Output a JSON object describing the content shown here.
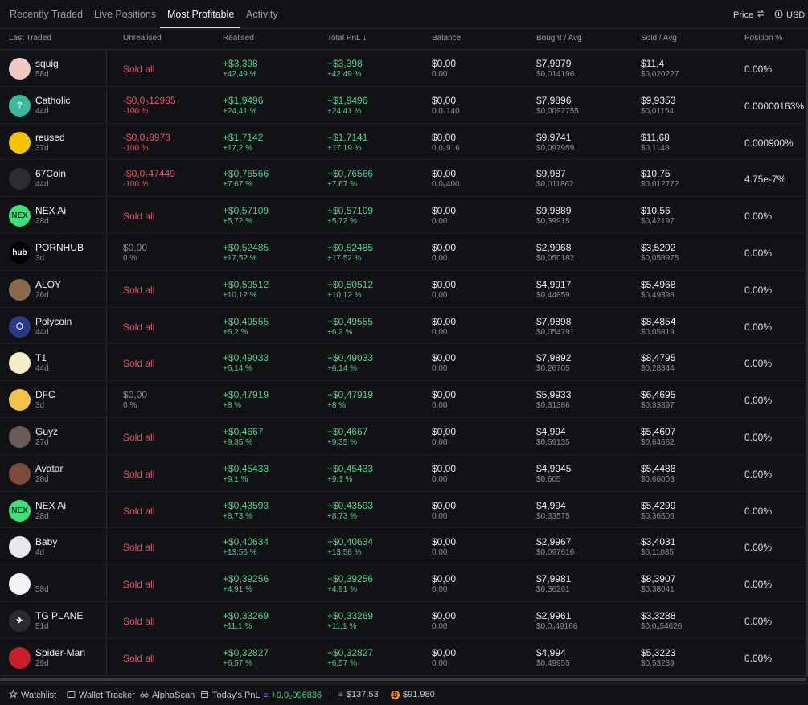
{
  "tabs": [
    {
      "label": "Recently Traded"
    },
    {
      "label": "Live Positions"
    },
    {
      "label": "Most Profitable"
    },
    {
      "label": "Activity"
    }
  ],
  "header_right": {
    "price_label": "Price",
    "currency_label": "USD"
  },
  "columns": [
    "Last Traded",
    "Unrealised",
    "Realised",
    "Total PnL",
    "Balance",
    "Bought / Avg",
    "Sold / Avg",
    "Position %"
  ],
  "sort_indicator": "↓",
  "rows": [
    {
      "name": "squig",
      "age": "58d",
      "avatar": "#f0c7c3",
      "avatar_text": "",
      "unreal_1": "Sold all",
      "unreal_2": "",
      "unreal_style": "red",
      "real_1": "+$3,398",
      "real_2": "+42,49 %",
      "total_1": "+$3,398",
      "total_2": "+42,49 %",
      "bal_1": "$0,00",
      "bal_2": "0,00",
      "bought_1": "$7,9979",
      "bought_2": "$0,014196",
      "sold_1": "$11,4",
      "sold_2": "$0,020227",
      "position": "0.00%"
    },
    {
      "name": "Catholic",
      "age": "44d",
      "avatar": "#3ab8a0",
      "avatar_text": "?",
      "unreal_1": "-$0,0₆12985",
      "unreal_2": "-100 %",
      "unreal_style": "red2",
      "real_1": "+$1,9496",
      "real_2": "+24,41 %",
      "total_1": "+$1,9496",
      "total_2": "+24,41 %",
      "bal_1": "$0,00",
      "bal_2": "0,0₄140",
      "bought_1": "$7,9896",
      "bought_2": "$0,0092755",
      "sold_1": "$9,9353",
      "sold_2": "$0,01154",
      "position": "0.00000163%"
    },
    {
      "name": "reused",
      "age": "37d",
      "avatar": "#f5c400",
      "avatar_text": "",
      "unreal_1": "-$0,0₄8973",
      "unreal_2": "-100 %",
      "unreal_style": "red2",
      "real_1": "+$1,7142",
      "real_2": "+17,2 %",
      "total_1": "+$1,7141",
      "total_2": "+17,19 %",
      "bal_1": "$0,00",
      "bal_2": "0,0₃916",
      "bought_1": "$9,9741",
      "bought_2": "$0,097959",
      "sold_1": "$11,68",
      "sold_2": "$0,1148",
      "position": "0.000900%"
    },
    {
      "name": "67Coin",
      "age": "44d",
      "avatar": "#2b2c30",
      "avatar_text": "",
      "unreal_1": "-$0,0₇47449",
      "unreal_2": "-100 %",
      "unreal_style": "red2",
      "real_1": "+$0,76566",
      "real_2": "+7,67 %",
      "total_1": "+$0,76566",
      "total_2": "+7,67 %",
      "bal_1": "$0,00",
      "bal_2": "0,0₅400",
      "bought_1": "$9,987",
      "bought_2": "$0,011862",
      "sold_1": "$10,75",
      "sold_2": "$0,012772",
      "position": "4.75e-7%"
    },
    {
      "name": "NEX Ai",
      "age": "28d",
      "avatar": "#3ee07a",
      "avatar_text": "NEX",
      "unreal_1": "Sold all",
      "unreal_2": "",
      "unreal_style": "red",
      "real_1": "+$0,57109",
      "real_2": "+5,72 %",
      "total_1": "+$0,57109",
      "total_2": "+5,72 %",
      "bal_1": "$0,00",
      "bal_2": "0,00",
      "bought_1": "$9,9889",
      "bought_2": "$0,39915",
      "sold_1": "$10,56",
      "sold_2": "$0,42197",
      "position": "0.00%"
    },
    {
      "name": "PORNHUB",
      "age": "3d",
      "avatar": "#000000",
      "avatar_text": "hub",
      "unreal_1": "$0,00",
      "unreal_2": "0 %",
      "unreal_style": "grey",
      "real_1": "+$0,52485",
      "real_2": "+17,52 %",
      "total_1": "+$0,52485",
      "total_2": "+17,52 %",
      "bal_1": "$0,00",
      "bal_2": "0,00",
      "bought_1": "$2,9968",
      "bought_2": "$0,050182",
      "sold_1": "$3,5202",
      "sold_2": "$0,058975",
      "position": "0.00%"
    },
    {
      "name": "ALOY",
      "age": "26d",
      "avatar": "#8a6a4a",
      "avatar_text": "",
      "unreal_1": "Sold all",
      "unreal_2": "",
      "unreal_style": "red",
      "real_1": "+$0,50512",
      "real_2": "+10,12 %",
      "total_1": "+$0,50512",
      "total_2": "+10,12 %",
      "bal_1": "$0,00",
      "bal_2": "0,00",
      "bought_1": "$4,9917",
      "bought_2": "$0,44859",
      "sold_1": "$5,4968",
      "sold_2": "$0,49398",
      "position": "0.00%"
    },
    {
      "name": "Polycoin",
      "age": "44d",
      "avatar": "#2a3a8a",
      "avatar_text": "⬡",
      "unreal_1": "Sold all",
      "unreal_2": "",
      "unreal_style": "red",
      "real_1": "+$0,49555",
      "real_2": "+6,2 %",
      "total_1": "+$0,49555",
      "total_2": "+6,2 %",
      "bal_1": "$0,00",
      "bal_2": "0,00",
      "bought_1": "$7,9898",
      "bought_2": "$0,054791",
      "sold_1": "$8,4854",
      "sold_2": "$0,05819",
      "position": "0.00%"
    },
    {
      "name": "T1",
      "age": "44d",
      "avatar": "#f5ecc8",
      "avatar_text": "",
      "unreal_1": "Sold all",
      "unreal_2": "",
      "unreal_style": "red",
      "real_1": "+$0,49033",
      "real_2": "+6,14 %",
      "total_1": "+$0,49033",
      "total_2": "+6,14 %",
      "bal_1": "$0,00",
      "bal_2": "0,00",
      "bought_1": "$7,9892",
      "bought_2": "$0,26705",
      "sold_1": "$8,4795",
      "sold_2": "$0,28344",
      "position": "0.00%"
    },
    {
      "name": "DFC",
      "age": "3d",
      "avatar": "#f2c24a",
      "avatar_text": "",
      "unreal_1": "$0,00",
      "unreal_2": "0 %",
      "unreal_style": "grey",
      "real_1": "+$0,47919",
      "real_2": "+8 %",
      "total_1": "+$0,47919",
      "total_2": "+8 %",
      "bal_1": "$0,00",
      "bal_2": "0,00",
      "bought_1": "$5,9933",
      "bought_2": "$0,31386",
      "sold_1": "$6,4695",
      "sold_2": "$0,33897",
      "position": "0.00%"
    },
    {
      "name": "Guyz",
      "age": "27d",
      "avatar": "#6a5a55",
      "avatar_text": "",
      "unreal_1": "Sold all",
      "unreal_2": "",
      "unreal_style": "red",
      "real_1": "+$0,4667",
      "real_2": "+9,35 %",
      "total_1": "+$0,4667",
      "total_2": "+9,35 %",
      "bal_1": "$0,00",
      "bal_2": "0,00",
      "bought_1": "$4,994",
      "bought_2": "$0,59135",
      "sold_1": "$5,4607",
      "sold_2": "$0,64662",
      "position": "0.00%"
    },
    {
      "name": "Avatar",
      "age": "28d",
      "avatar": "#7a4a3a",
      "avatar_text": "",
      "unreal_1": "Sold all",
      "unreal_2": "",
      "unreal_style": "red",
      "real_1": "+$0,45433",
      "real_2": "+9,1 %",
      "total_1": "+$0,45433",
      "total_2": "+9,1 %",
      "bal_1": "$0,00",
      "bal_2": "0,00",
      "bought_1": "$4,9945",
      "bought_2": "$0,605",
      "sold_1": "$5,4488",
      "sold_2": "$0,66003",
      "position": "0.00%"
    },
    {
      "name": "NEX Ai",
      "age": "28d",
      "avatar": "#3ee07a",
      "avatar_text": "NEX",
      "unreal_1": "Sold all",
      "unreal_2": "",
      "unreal_style": "red",
      "real_1": "+$0,43593",
      "real_2": "+8,73 %",
      "total_1": "+$0,43593",
      "total_2": "+8,73 %",
      "bal_1": "$0,00",
      "bal_2": "0,00",
      "bought_1": "$4,994",
      "bought_2": "$0,33575",
      "sold_1": "$5,4299",
      "sold_2": "$0,36506",
      "position": "0.00%"
    },
    {
      "name": "Baby",
      "age": "4d",
      "avatar": "#e8e8f0",
      "avatar_text": "",
      "unreal_1": "Sold all",
      "unreal_2": "",
      "unreal_style": "red",
      "real_1": "+$0,40634",
      "real_2": "+13,56 %",
      "total_1": "+$0,40634",
      "total_2": "+13,56 %",
      "bal_1": "$0,00",
      "bal_2": "0,00",
      "bought_1": "$2,9967",
      "bought_2": "$0,097616",
      "sold_1": "$3,4031",
      "sold_2": "$0,11085",
      "position": "0.00%"
    },
    {
      "name": "",
      "age": "58d",
      "avatar": "#f4f4f4",
      "avatar_text": "",
      "unreal_1": "Sold all",
      "unreal_2": "",
      "unreal_style": "red",
      "real_1": "+$0,39256",
      "real_2": "+4,91 %",
      "total_1": "+$0,39256",
      "total_2": "+4,91 %",
      "bal_1": "$0,00",
      "bal_2": "0,00",
      "bought_1": "$7,9981",
      "bought_2": "$0,36261",
      "sold_1": "$8,3907",
      "sold_2": "$0,38041",
      "position": "0.00%"
    },
    {
      "name": "TG PLANE",
      "age": "51d",
      "avatar": "#2a2b30",
      "avatar_text": "✈",
      "unreal_1": "Sold all",
      "unreal_2": "",
      "unreal_style": "red",
      "real_1": "+$0,33269",
      "real_2": "+11,1 %",
      "total_1": "+$0,33269",
      "total_2": "+11,1 %",
      "bal_1": "$0,00",
      "bal_2": "0,00",
      "bought_1": "$2,9961",
      "bought_2": "$0,0₄49166",
      "sold_1": "$3,3288",
      "sold_2": "$0,0₄54626",
      "position": "0.00%"
    },
    {
      "name": "Spider-Man",
      "age": "29d",
      "avatar": "#c8202a",
      "avatar_text": "",
      "unreal_1": "Sold all",
      "unreal_2": "",
      "unreal_style": "red",
      "real_1": "+$0,32827",
      "real_2": "+6,57 %",
      "total_1": "+$0,32827",
      "total_2": "+6,57 %",
      "bal_1": "$0,00",
      "bal_2": "0,00",
      "bought_1": "$4,994",
      "bought_2": "$0,49955",
      "sold_1": "$5,3223",
      "sold_2": "$0,53239",
      "position": "0.00%"
    }
  ],
  "footer": {
    "watchlist": "Watchlist",
    "wallet_tracker": "Wallet Tracker",
    "alphascan": "AlphaScan",
    "todays_pnl_label": "Today's PnL",
    "todays_pnl_value": "+0,0₂096836",
    "sol_price": "$137,53",
    "btc_price": "$91.980"
  },
  "colors": {
    "green": "#4fd38a",
    "red": "#e8556b",
    "background": "#111216"
  }
}
